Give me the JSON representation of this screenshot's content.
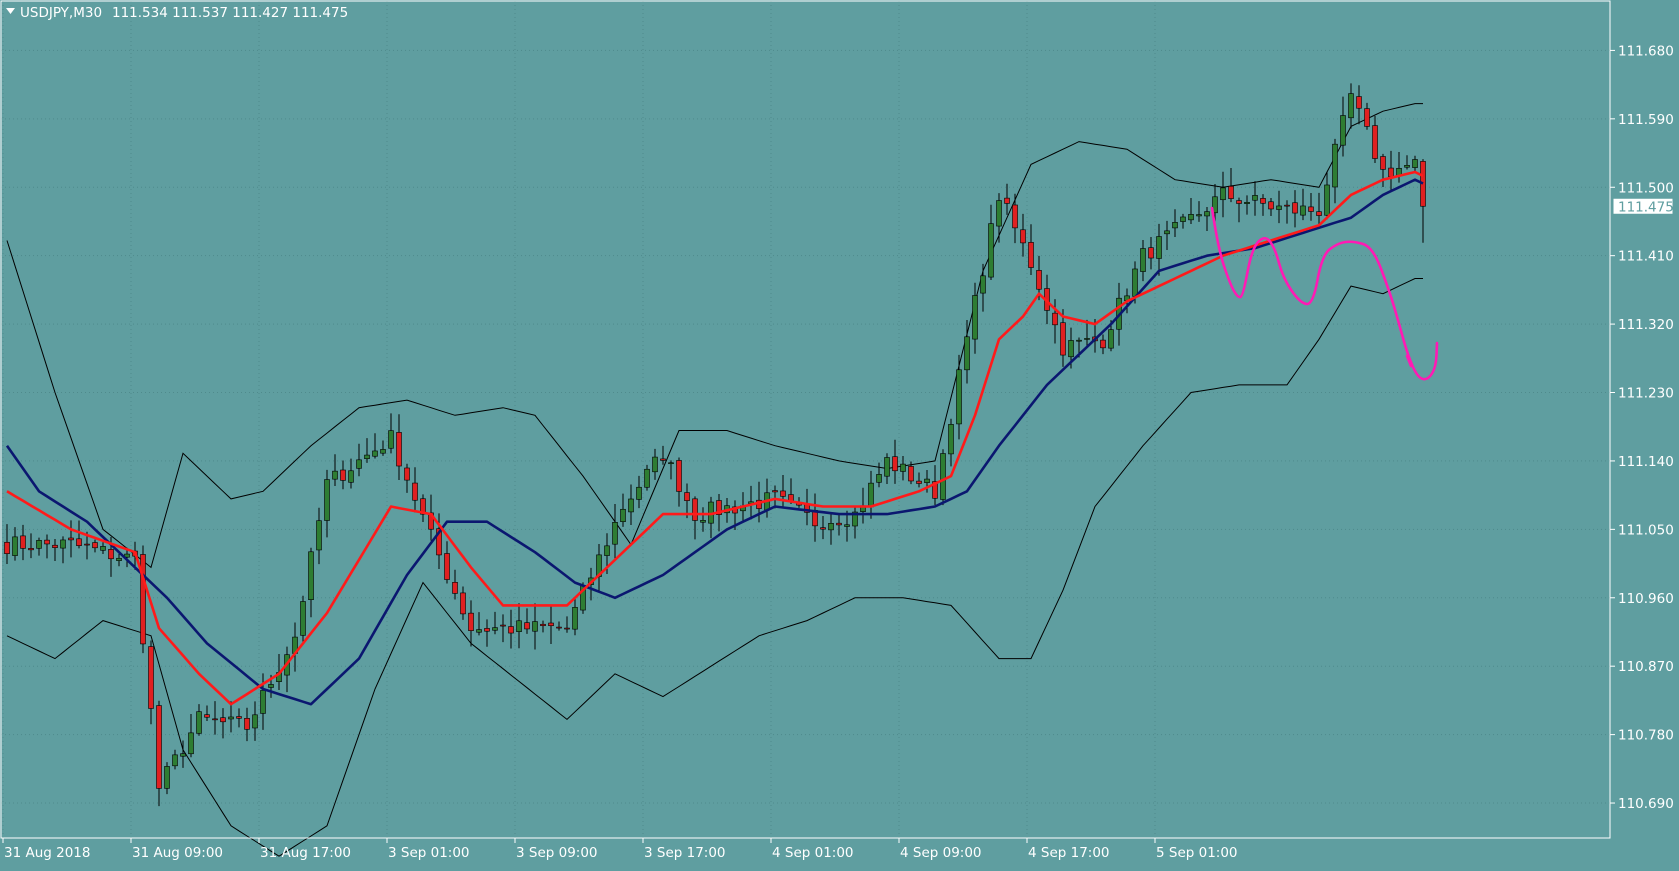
{
  "chart_header": {
    "symbol_timeframe": "USDJPY,M30",
    "ohlc_text": "111.534 111.537 111.427 111.475"
  },
  "chart_data": {
    "type": "candlestick",
    "symbol": "USDJPY",
    "timeframe": "M30",
    "ohlc": {
      "open": 111.534,
      "high": 111.537,
      "low": 111.427,
      "close": 111.475
    },
    "price_ticks": [
      "111.680",
      "111.590",
      "111.500",
      "111.410",
      "111.320",
      "111.230",
      "111.140",
      "111.050",
      "110.960",
      "110.870",
      "110.780",
      "110.690"
    ],
    "ylim": [
      110.644,
      111.745
    ],
    "current_price_label": "111.475",
    "time_labels": [
      "31 Aug 2018",
      "31 Aug 09:00",
      "31 Aug 17:00",
      "3 Sep 01:00",
      "3 Sep 09:00",
      "3 Sep 17:00",
      "4 Sep 01:00",
      "4 Sep 09:00",
      "4 Sep 17:00",
      "5 Sep 01:00"
    ],
    "bars_per_time_label": 16,
    "grid": true,
    "close_anchors": [
      [
        0,
        111.03
      ],
      [
        8,
        111.03
      ],
      [
        16,
        111.01
      ],
      [
        19,
        110.71
      ],
      [
        24,
        110.8
      ],
      [
        30,
        110.79
      ],
      [
        36,
        110.91
      ],
      [
        40,
        111.11
      ],
      [
        48,
        111.17
      ],
      [
        53,
        111.04
      ],
      [
        58,
        110.92
      ],
      [
        63,
        110.92
      ],
      [
        70,
        110.92
      ],
      [
        77,
        111.08
      ],
      [
        82,
        111.15
      ],
      [
        86,
        111.07
      ],
      [
        96,
        111.09
      ],
      [
        101,
        111.06
      ],
      [
        106,
        111.07
      ],
      [
        110,
        111.14
      ],
      [
        116,
        111.1
      ],
      [
        120,
        111.3
      ],
      [
        124,
        111.49
      ],
      [
        128,
        111.4
      ],
      [
        132,
        111.29
      ],
      [
        137,
        111.3
      ],
      [
        142,
        111.41
      ],
      [
        152,
        111.49
      ],
      [
        160,
        111.47
      ],
      [
        164,
        111.47
      ],
      [
        168,
        111.62
      ],
      [
        172,
        111.52
      ],
      [
        176,
        111.53
      ],
      [
        177,
        111.475
      ]
    ],
    "ema_fast_anchors": [
      [
        0,
        111.1
      ],
      [
        8,
        111.05
      ],
      [
        16,
        111.02
      ],
      [
        19,
        110.92
      ],
      [
        24,
        110.86
      ],
      [
        28,
        110.82
      ],
      [
        34,
        110.86
      ],
      [
        40,
        110.94
      ],
      [
        48,
        111.08
      ],
      [
        53,
        111.07
      ],
      [
        58,
        111.0
      ],
      [
        62,
        110.95
      ],
      [
        70,
        110.95
      ],
      [
        77,
        111.02
      ],
      [
        82,
        111.07
      ],
      [
        88,
        111.07
      ],
      [
        96,
        111.09
      ],
      [
        102,
        111.08
      ],
      [
        108,
        111.08
      ],
      [
        114,
        111.1
      ],
      [
        118,
        111.12
      ],
      [
        121,
        111.2
      ],
      [
        124,
        111.3
      ],
      [
        127,
        111.33
      ],
      [
        129,
        111.36
      ],
      [
        132,
        111.33
      ],
      [
        136,
        111.32
      ],
      [
        140,
        111.35
      ],
      [
        146,
        111.38
      ],
      [
        152,
        111.41
      ],
      [
        158,
        111.43
      ],
      [
        164,
        111.45
      ],
      [
        166,
        111.47
      ],
      [
        168,
        111.49
      ],
      [
        172,
        111.51
      ],
      [
        176,
        111.52
      ],
      [
        177,
        111.515
      ]
    ],
    "ema_slow_anchors": [
      [
        0,
        111.16
      ],
      [
        4,
        111.1
      ],
      [
        10,
        111.06
      ],
      [
        16,
        111.0
      ],
      [
        20,
        110.96
      ],
      [
        25,
        110.9
      ],
      [
        32,
        110.84
      ],
      [
        38,
        110.82
      ],
      [
        44,
        110.88
      ],
      [
        50,
        110.99
      ],
      [
        55,
        111.06
      ],
      [
        60,
        111.06
      ],
      [
        66,
        111.02
      ],
      [
        71,
        110.98
      ],
      [
        76,
        110.96
      ],
      [
        82,
        110.99
      ],
      [
        90,
        111.05
      ],
      [
        96,
        111.08
      ],
      [
        104,
        111.07
      ],
      [
        110,
        111.07
      ],
      [
        116,
        111.08
      ],
      [
        120,
        111.1
      ],
      [
        124,
        111.16
      ],
      [
        130,
        111.24
      ],
      [
        134,
        111.28
      ],
      [
        138,
        111.32
      ],
      [
        144,
        111.39
      ],
      [
        150,
        111.41
      ],
      [
        156,
        111.42
      ],
      [
        162,
        111.44
      ],
      [
        168,
        111.46
      ],
      [
        172,
        111.49
      ],
      [
        176,
        111.51
      ],
      [
        177,
        111.505
      ]
    ],
    "bb_upper_anchors": [
      [
        0,
        111.43
      ],
      [
        6,
        111.23
      ],
      [
        12,
        111.05
      ],
      [
        18,
        111.0
      ],
      [
        22,
        111.15
      ],
      [
        28,
        111.09
      ],
      [
        32,
        111.1
      ],
      [
        38,
        111.16
      ],
      [
        44,
        111.21
      ],
      [
        50,
        111.22
      ],
      [
        56,
        111.2
      ],
      [
        62,
        111.21
      ],
      [
        66,
        111.2
      ],
      [
        72,
        111.12
      ],
      [
        78,
        111.03
      ],
      [
        84,
        111.18
      ],
      [
        90,
        111.18
      ],
      [
        96,
        111.16
      ],
      [
        104,
        111.14
      ],
      [
        110,
        111.13
      ],
      [
        116,
        111.14
      ],
      [
        122,
        111.39
      ],
      [
        128,
        111.53
      ],
      [
        134,
        111.56
      ],
      [
        140,
        111.55
      ],
      [
        146,
        111.51
      ],
      [
        152,
        111.5
      ],
      [
        158,
        111.51
      ],
      [
        164,
        111.5
      ],
      [
        168,
        111.58
      ],
      [
        172,
        111.6
      ],
      [
        176,
        111.61
      ],
      [
        177,
        111.61
      ]
    ],
    "bb_lower_anchors": [
      [
        0,
        110.91
      ],
      [
        6,
        110.88
      ],
      [
        12,
        110.93
      ],
      [
        18,
        110.91
      ],
      [
        22,
        110.76
      ],
      [
        28,
        110.66
      ],
      [
        34,
        110.62
      ],
      [
        40,
        110.66
      ],
      [
        46,
        110.84
      ],
      [
        52,
        110.98
      ],
      [
        58,
        110.9
      ],
      [
        64,
        110.85
      ],
      [
        70,
        110.8
      ],
      [
        76,
        110.86
      ],
      [
        82,
        110.83
      ],
      [
        88,
        110.87
      ],
      [
        94,
        110.91
      ],
      [
        100,
        110.93
      ],
      [
        106,
        110.96
      ],
      [
        112,
        110.96
      ],
      [
        118,
        110.95
      ],
      [
        124,
        110.88
      ],
      [
        128,
        110.88
      ],
      [
        132,
        110.97
      ],
      [
        136,
        111.08
      ],
      [
        142,
        111.16
      ],
      [
        148,
        111.23
      ],
      [
        154,
        111.24
      ],
      [
        160,
        111.24
      ],
      [
        164,
        111.3
      ],
      [
        168,
        111.37
      ],
      [
        172,
        111.36
      ],
      [
        176,
        111.38
      ],
      [
        177,
        111.38
      ]
    ],
    "projection_path": [
      [
        1212,
        208
      ],
      [
        1218,
        248
      ],
      [
        1230,
        284
      ],
      [
        1238,
        298
      ],
      [
        1243,
        296
      ],
      [
        1252,
        248
      ],
      [
        1265,
        235
      ],
      [
        1275,
        248
      ],
      [
        1283,
        278
      ],
      [
        1300,
        303
      ],
      [
        1313,
        305
      ],
      [
        1322,
        255
      ],
      [
        1338,
        243
      ],
      [
        1353,
        241
      ],
      [
        1373,
        247
      ],
      [
        1390,
        293
      ],
      [
        1398,
        320
      ],
      [
        1408,
        356
      ],
      [
        1418,
        378
      ],
      [
        1428,
        380
      ],
      [
        1436,
        367
      ],
      [
        1437,
        343
      ]
    ],
    "projection_tail": [
      [
        1407,
        356
      ],
      [
        1411,
        366
      ]
    ]
  },
  "colors": {
    "background": "#5f9ea0",
    "grid": "#4f8a8c",
    "bull_candle": "#2e7d32",
    "bear_candle": "#e02020",
    "wick": "#000000",
    "ema_fast": "#ff1a1a",
    "ema_slow": "#0b1770",
    "bollinger": "#000000",
    "projection": "#ff1ab4",
    "axis_text": "#ffffff",
    "header_text": "#ffffff"
  }
}
